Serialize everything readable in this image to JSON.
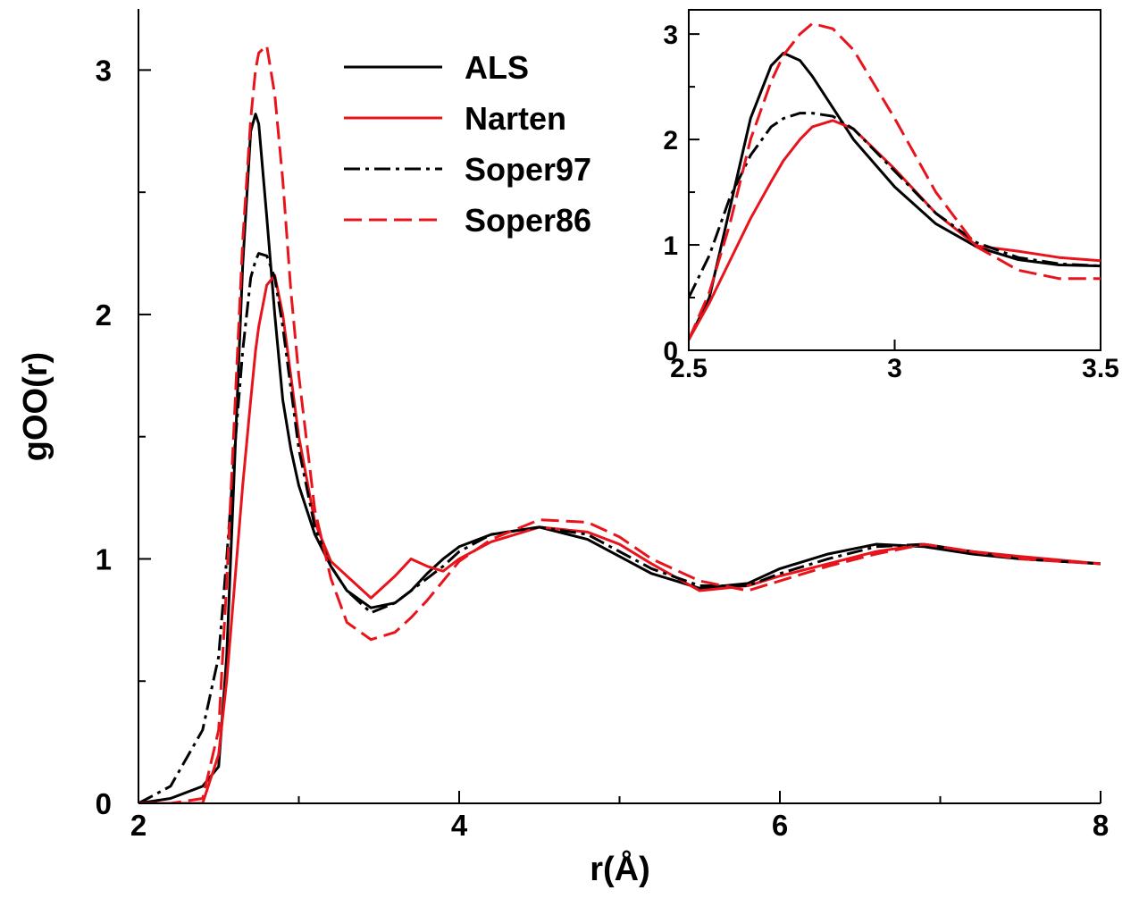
{
  "chart_data": [
    {
      "type": "line",
      "xlabel": "r(Å)",
      "ylabel": "gOO(r)",
      "xlim": [
        2,
        8
      ],
      "ylim": [
        0,
        3.25
      ],
      "xticks": [
        2,
        4,
        6,
        8
      ],
      "yticks": [
        0,
        1,
        2,
        3
      ],
      "xminorticks": [
        3,
        5,
        7
      ],
      "yminorticks": [
        0.5,
        1.5,
        2.5
      ],
      "legend": "upper center",
      "x": [
        2,
        2.2,
        2.4,
        2.5,
        2.55,
        2.6,
        2.65,
        2.7,
        2.73,
        2.75,
        2.8,
        2.85,
        2.9,
        2.95,
        3,
        3.1,
        3.2,
        3.3,
        3.45,
        3.6,
        3.7,
        3.8,
        3.9,
        4,
        4.2,
        4.5,
        4.8,
        5,
        5.2,
        5.5,
        5.8,
        6,
        6.3,
        6.6,
        6.9,
        7.2,
        7.5,
        8
      ],
      "series": [
        {
          "name": "ALS",
          "color": "#000000",
          "style": "solid",
          "values": [
            0,
            0.02,
            0.07,
            0.15,
            0.6,
            1.4,
            2.2,
            2.75,
            2.82,
            2.78,
            2.4,
            2.0,
            1.65,
            1.45,
            1.3,
            1.1,
            0.97,
            0.87,
            0.8,
            0.82,
            0.87,
            0.94,
            1.0,
            1.05,
            1.1,
            1.13,
            1.08,
            1.01,
            0.94,
            0.88,
            0.9,
            0.96,
            1.02,
            1.06,
            1.05,
            1.02,
            1.0,
            0.98
          ]
        },
        {
          "name": "Narten",
          "color": "#e8141c",
          "style": "solid",
          "values": [
            0,
            0,
            0,
            0.2,
            0.5,
            0.9,
            1.3,
            1.65,
            1.85,
            1.95,
            2.12,
            2.16,
            2.0,
            1.75,
            1.5,
            1.15,
            0.99,
            0.93,
            0.84,
            0.93,
            1.0,
            0.97,
            0.95,
            1.0,
            1.07,
            1.13,
            1.11,
            1.06,
            0.98,
            0.87,
            0.89,
            0.93,
            0.98,
            1.03,
            1.06,
            1.03,
            1.01,
            0.98
          ]
        },
        {
          "name": "Soper97",
          "color": "#000000",
          "style": "dashdot",
          "values": [
            0,
            0.07,
            0.3,
            0.6,
            1.0,
            1.45,
            1.85,
            2.15,
            2.22,
            2.25,
            2.24,
            2.15,
            1.95,
            1.7,
            1.45,
            1.13,
            0.97,
            0.87,
            0.78,
            0.82,
            0.87,
            0.92,
            0.97,
            1.03,
            1.1,
            1.13,
            1.1,
            1.03,
            0.96,
            0.89,
            0.89,
            0.94,
            1.0,
            1.05,
            1.06,
            1.03,
            1.0,
            0.98
          ]
        },
        {
          "name": "Soper86",
          "color": "#e8141c",
          "style": "dashed",
          "values": [
            0,
            0,
            0.02,
            0.3,
            0.9,
            1.6,
            2.3,
            2.8,
            3.0,
            3.07,
            3.1,
            2.9,
            2.55,
            2.1,
            1.75,
            1.2,
            0.92,
            0.74,
            0.67,
            0.7,
            0.76,
            0.83,
            0.91,
            0.99,
            1.08,
            1.16,
            1.15,
            1.09,
            1.0,
            0.91,
            0.87,
            0.91,
            0.97,
            1.02,
            1.06,
            1.03,
            1.0,
            0.98
          ]
        }
      ]
    },
    {
      "type": "line",
      "xlim": [
        2.5,
        3.5
      ],
      "ylim": [
        0,
        3.23
      ],
      "xticks": [
        2.5,
        3,
        3.5
      ],
      "yticks": [
        0,
        1,
        2,
        3
      ],
      "yminorticks": [
        0.5,
        1.5,
        2.5
      ],
      "x": [
        2.5,
        2.55,
        2.6,
        2.65,
        2.7,
        2.73,
        2.77,
        2.8,
        2.85,
        2.9,
        3,
        3.1,
        3.2,
        3.3,
        3.4,
        3.5
      ],
      "series": [
        {
          "color": "#000000",
          "style": "solid",
          "values": [
            0.1,
            0.5,
            1.35,
            2.2,
            2.7,
            2.82,
            2.75,
            2.6,
            2.3,
            2.0,
            1.55,
            1.2,
            0.98,
            0.86,
            0.81,
            0.8
          ]
        },
        {
          "color": "#e8141c",
          "style": "solid",
          "values": [
            0.1,
            0.45,
            0.85,
            1.25,
            1.6,
            1.8,
            2.0,
            2.12,
            2.18,
            2.1,
            1.72,
            1.3,
            0.99,
            0.94,
            0.88,
            0.85
          ]
        },
        {
          "color": "#000000",
          "style": "dashdot",
          "values": [
            0.5,
            0.9,
            1.45,
            1.85,
            2.12,
            2.2,
            2.25,
            2.25,
            2.22,
            2.1,
            1.7,
            1.3,
            1.02,
            0.88,
            0.82,
            0.8
          ]
        },
        {
          "color": "#e8141c",
          "style": "dashed",
          "values": [
            0.1,
            0.55,
            1.2,
            2.0,
            2.55,
            2.8,
            3.0,
            3.1,
            3.05,
            2.85,
            2.2,
            1.5,
            0.98,
            0.76,
            0.68,
            0.68
          ]
        }
      ]
    }
  ]
}
